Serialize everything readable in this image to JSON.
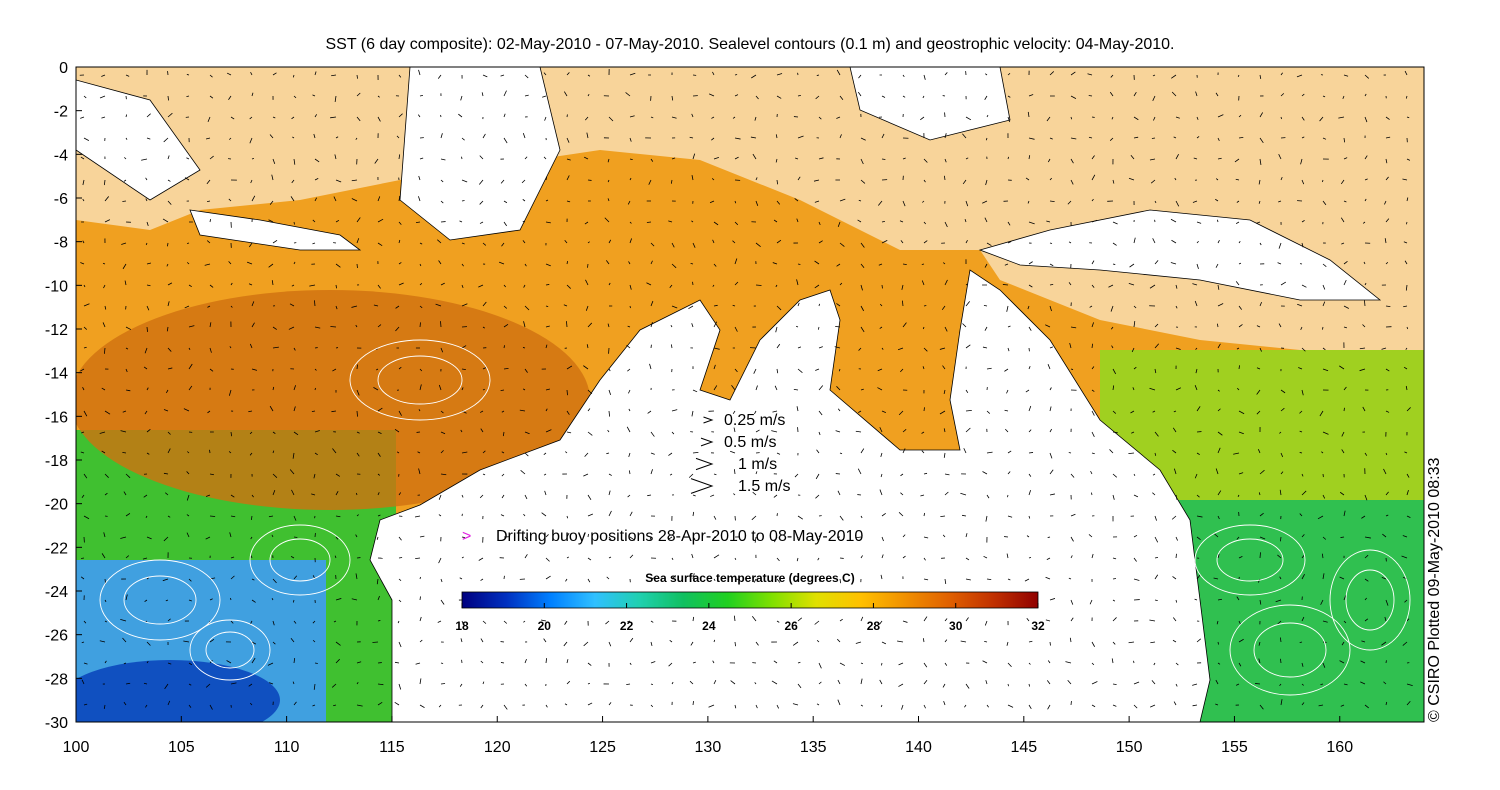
{
  "title": "SST (6 day composite): 02-May-2010 - 07-May-2010. Sealevel contours (0.1 m) and geostrophic velocity: 04-May-2010.",
  "side_note": "© CSIRO Plotted 09-May-2010 08:33",
  "axes": {
    "x_ticks": [
      "100",
      "105",
      "110",
      "115",
      "120",
      "125",
      "130",
      "135",
      "140",
      "145",
      "150",
      "155",
      "160"
    ],
    "y_ticks": [
      "0",
      "-2",
      "-4",
      "-6",
      "-8",
      "-10",
      "-12",
      "-14",
      "-16",
      "-18",
      "-20",
      "-22",
      "-24",
      "-26",
      "-28",
      "-30"
    ],
    "xlim": [
      100,
      164
    ],
    "ylim": [
      -30,
      0
    ]
  },
  "velocity_legend": [
    {
      "label": "0.25 m/s",
      "speed": 0.25
    },
    {
      "label": "0.5 m/s",
      "speed": 0.5
    },
    {
      "label": "1 m/s",
      "speed": 1
    },
    {
      "label": "1.5 m/s",
      "speed": 1.5
    }
  ],
  "buoy_legend": {
    "symbol": ">",
    "label": "Drifting buoy positions 28-Apr-2010 to 08-May-2010",
    "color": "#e020e0"
  },
  "colorbar": {
    "title": "Sea surface temperature (degrees C)",
    "ticks": [
      "18",
      "20",
      "22",
      "24",
      "26",
      "28",
      "30",
      "32"
    ],
    "range": [
      18,
      32
    ],
    "colors": [
      "#00007f",
      "#0030c0",
      "#0080ff",
      "#30c0ff",
      "#20d0b0",
      "#10c060",
      "#20d020",
      "#80e000",
      "#e0e000",
      "#ffc000",
      "#f09000",
      "#e06000",
      "#c03000",
      "#900000"
    ]
  }
}
